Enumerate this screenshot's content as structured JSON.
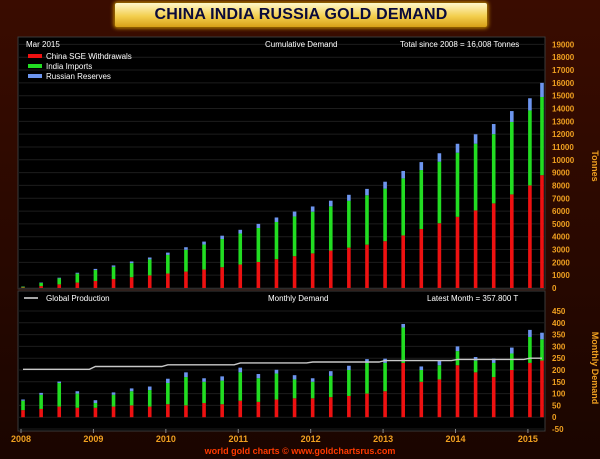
{
  "chart_data": {
    "title": "CHINA INDIA RUSSIA GOLD DEMAND",
    "date_label": "Mar  2015",
    "credit": "world gold charts © www.goldchartsrus.com",
    "x_axis": {
      "tick_labels": [
        "2008",
        "2009",
        "2010",
        "2011",
        "2012",
        "2013",
        "2014",
        "2015"
      ],
      "start": "2008-01",
      "end": "2015-03"
    },
    "colors": {
      "china": "#ee1111",
      "india": "#22dd22",
      "russia": "#6d95ee",
      "production": "#c8c8c8",
      "tick_labels": "#f0a020",
      "footer": "#ff3a00"
    },
    "panels": [
      {
        "type": "bar",
        "stacked": true,
        "title": "Cumulative Demand",
        "annotation": "Total since 2008 = 16,008 Tonnes",
        "ylabel": "Tonnes",
        "ylim": [
          0,
          19500
        ],
        "yticks": [
          0,
          1000,
          2000,
          3000,
          4000,
          5000,
          6000,
          7000,
          8000,
          9000,
          10000,
          11000,
          12000,
          13000,
          14000,
          15000,
          16000,
          17000,
          18000,
          19000
        ],
        "grid": true,
        "legend": "top-left",
        "x": [
          "2008-01",
          "2008-04",
          "2008-07",
          "2008-10",
          "2009-01",
          "2009-04",
          "2009-07",
          "2009-10",
          "2010-01",
          "2010-04",
          "2010-07",
          "2010-10",
          "2011-01",
          "2011-04",
          "2011-07",
          "2011-10",
          "2012-01",
          "2012-04",
          "2012-07",
          "2012-10",
          "2013-01",
          "2013-04",
          "2013-07",
          "2013-10",
          "2014-01",
          "2014-04",
          "2014-07",
          "2014-10",
          "2015-01",
          "2015-03"
        ],
        "series": [
          {
            "name": "China SGE Withdrawals",
            "values": [
              40,
              150,
              280,
              420,
              550,
              700,
              840,
              980,
              1130,
              1280,
              1440,
              1620,
              1830,
              2030,
              2250,
              2480,
              2700,
              2920,
              3150,
              3380,
              3650,
              4100,
              4600,
              5050,
              5550,
              6050,
              6600,
              7300,
              8000,
              8800
            ]
          },
          {
            "name": "India Imports",
            "values": [
              70,
              250,
              470,
              700,
              850,
              950,
              1100,
              1250,
              1450,
              1700,
              1950,
              2200,
              2420,
              2650,
              2900,
              3100,
              3250,
              3450,
              3650,
              3850,
              4100,
              4450,
              4600,
              4800,
              5000,
              5200,
              5400,
              5650,
              5850,
              6100
            ]
          },
          {
            "name": "Russian Reserves",
            "values": [
              10,
              30,
              50,
              70,
              90,
              110,
              130,
              150,
              180,
              200,
              230,
              260,
              290,
              320,
              350,
              380,
              410,
              440,
              470,
              500,
              540,
              580,
              620,
              660,
              700,
              740,
              790,
              850,
              950,
              1100
            ]
          }
        ]
      },
      {
        "type": "bar",
        "stacked": true,
        "title": "Monthly Demand",
        "annotation": "Latest Month = 357.800 T",
        "ylabel": "Monthly Demand",
        "ylim": [
          -50,
          450
        ],
        "yticks": [
          -50,
          0,
          50,
          100,
          150,
          200,
          250,
          300,
          350,
          400,
          450
        ],
        "grid": true,
        "legend": "top-left",
        "x": [
          "2008-01",
          "2008-04",
          "2008-07",
          "2008-10",
          "2009-01",
          "2009-04",
          "2009-07",
          "2009-10",
          "2010-01",
          "2010-04",
          "2010-07",
          "2010-10",
          "2011-01",
          "2011-04",
          "2011-07",
          "2011-10",
          "2012-01",
          "2012-04",
          "2012-07",
          "2012-10",
          "2013-01",
          "2013-04",
          "2013-07",
          "2013-10",
          "2014-01",
          "2014-04",
          "2014-07",
          "2014-10",
          "2015-01",
          "2015-03"
        ],
        "series": [
          {
            "name": "China SGE Withdrawals",
            "values": [
              30,
              35,
              45,
              40,
              40,
              45,
              50,
              45,
              55,
              50,
              60,
              55,
              70,
              65,
              75,
              80,
              80,
              85,
              90,
              100,
              110,
              230,
              150,
              160,
              220,
              190,
              170,
              200,
              230,
              240
            ]
          },
          {
            "name": "India Imports",
            "values": [
              40,
              60,
              100,
              60,
              20,
              50,
              60,
              70,
              90,
              120,
              90,
              100,
              120,
              100,
              110,
              80,
              70,
              90,
              110,
              130,
              120,
              150,
              50,
              60,
              60,
              50,
              60,
              70,
              110,
              90
            ]
          },
          {
            "name": "Russian Reserves",
            "values": [
              5,
              8,
              6,
              10,
              12,
              10,
              12,
              15,
              18,
              20,
              15,
              18,
              20,
              18,
              16,
              18,
              15,
              20,
              18,
              16,
              18,
              15,
              15,
              18,
              20,
              15,
              18,
              25,
              30,
              28
            ]
          }
        ],
        "line_series": {
          "name": "Global Production",
          "x": [
            "2008-01",
            "2008-12",
            "2009-01",
            "2009-12",
            "2010-01",
            "2010-12",
            "2011-01",
            "2011-12",
            "2012-01",
            "2012-12",
            "2013-01",
            "2013-12",
            "2014-01",
            "2014-12",
            "2015-01",
            "2015-03"
          ],
          "values": [
            203,
            203,
            215,
            215,
            222,
            222,
            230,
            230,
            234,
            234,
            240,
            240,
            245,
            245,
            250,
            250
          ]
        }
      }
    ]
  }
}
